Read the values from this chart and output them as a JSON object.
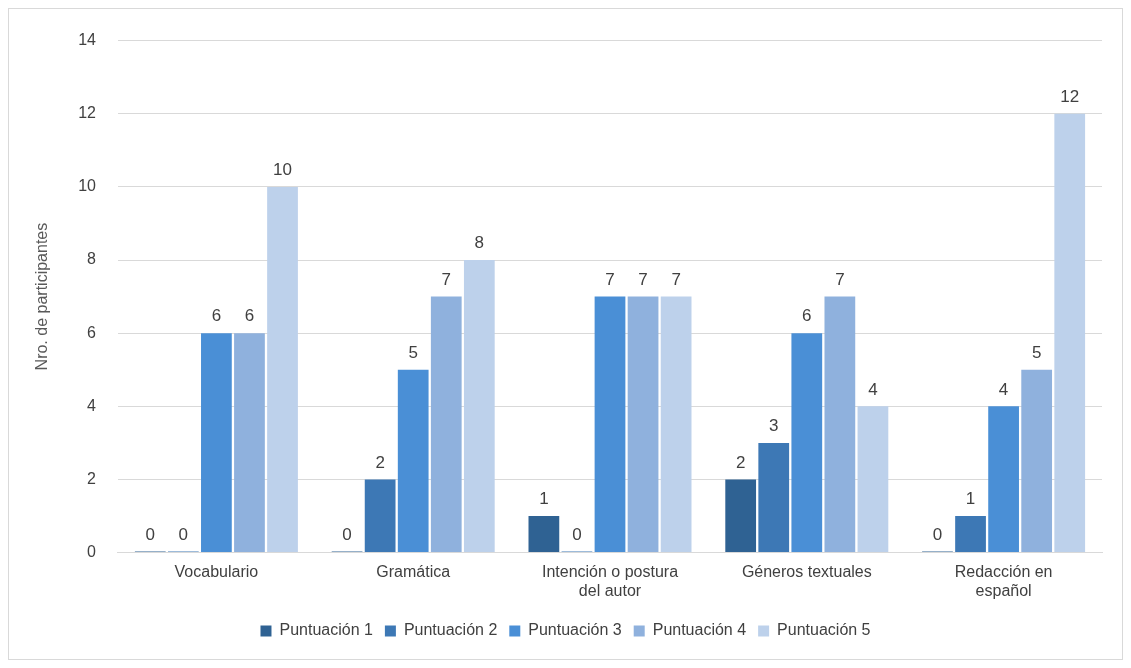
{
  "chart_data": {
    "type": "bar",
    "ylabel": "Nro. de participantes",
    "categories": [
      "Vocabulario",
      "Gramática",
      "Intención o postura del autor",
      "Géneros textuales",
      "Redacción en español"
    ],
    "series": [
      {
        "name": "Puntuación 1",
        "color": "#2f6293",
        "values": [
          0,
          0,
          1,
          2,
          0
        ]
      },
      {
        "name": "Puntuación 2",
        "color": "#3d78b5",
        "values": [
          0,
          2,
          0,
          3,
          1
        ]
      },
      {
        "name": "Puntuación 3",
        "color": "#4a8fd6",
        "values": [
          6,
          5,
          7,
          6,
          4
        ]
      },
      {
        "name": "Puntuación 4",
        "color": "#8fb1dd",
        "values": [
          6,
          7,
          7,
          7,
          5
        ]
      },
      {
        "name": "Puntuación 5",
        "color": "#bdd1eb",
        "values": [
          10,
          8,
          7,
          4,
          12
        ]
      }
    ],
    "ylim": [
      0,
      14
    ],
    "yticks": [
      0,
      2,
      4,
      6,
      8,
      10,
      12,
      14
    ],
    "grid": "y",
    "legend": "bottom",
    "data_labels": true
  }
}
